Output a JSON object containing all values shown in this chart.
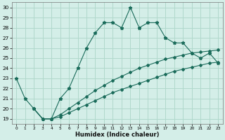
{
  "xlabel": "Humidex (Indice chaleur)",
  "bg_color": "#d4eee8",
  "grid_color": "#b0d8cc",
  "line_color": "#1a6b5a",
  "curve_x": [
    0,
    1,
    2,
    3,
    4,
    5,
    6,
    7,
    8,
    9,
    10,
    11,
    12,
    13,
    14,
    15,
    16,
    17,
    18,
    19,
    20,
    21,
    22,
    23
  ],
  "curve_y": [
    23,
    21,
    20,
    19,
    19,
    21,
    22,
    24,
    26,
    27.5,
    28.5,
    28.5,
    28,
    30,
    28,
    28.5,
    28.5,
    27,
    26.5,
    26.5,
    25.5,
    25,
    25.5,
    24.5
  ],
  "line1_x": [
    2,
    3,
    4,
    5,
    6,
    7,
    8,
    9,
    10,
    11,
    12,
    13,
    14,
    15,
    16,
    17,
    18,
    19,
    20,
    21,
    22,
    23
  ],
  "line1_y": [
    20,
    19,
    19,
    19.4,
    20.0,
    20.6,
    21.2,
    21.8,
    22.3,
    22.8,
    23.2,
    23.6,
    24.0,
    24.3,
    24.6,
    24.9,
    25.1,
    25.3,
    25.5,
    25.6,
    25.7,
    25.8
  ],
  "line2_x": [
    2,
    3,
    4,
    5,
    6,
    7,
    8,
    9,
    10,
    11,
    12,
    13,
    14,
    15,
    16,
    17,
    18,
    19,
    20,
    21,
    22,
    23
  ],
  "line2_y": [
    20,
    19,
    19,
    19.2,
    19.6,
    20.0,
    20.4,
    20.8,
    21.2,
    21.6,
    21.9,
    22.2,
    22.5,
    22.8,
    23.1,
    23.4,
    23.7,
    23.9,
    24.1,
    24.3,
    24.5,
    24.6
  ],
  "ylim": [
    18.5,
    30.5
  ],
  "xlim": [
    -0.5,
    23.5
  ],
  "xticks": [
    0,
    1,
    2,
    3,
    4,
    5,
    6,
    7,
    8,
    9,
    10,
    11,
    12,
    13,
    14,
    15,
    16,
    17,
    18,
    19,
    20,
    21,
    22,
    23
  ],
  "yticks": [
    19,
    20,
    21,
    22,
    23,
    24,
    25,
    26,
    27,
    28,
    29,
    30
  ]
}
